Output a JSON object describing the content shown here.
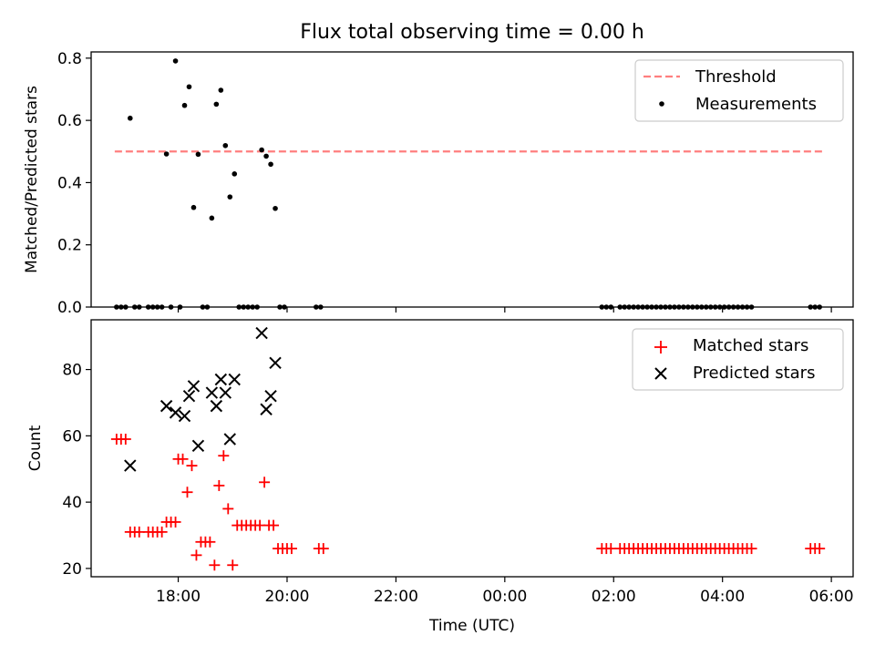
{
  "chart_data": [
    {
      "type": "scatter",
      "title": "Flux total observing time = 0.00 h",
      "ylabel": "Matched/Predicted stars",
      "xlabel": "",
      "xlim": [
        "16:24",
        "06:24"
      ],
      "ylim": [
        0,
        0.82
      ],
      "yticks": [
        "0.0",
        "0.2",
        "0.4",
        "0.6",
        "0.8"
      ],
      "legend_position": "top-right",
      "legend": [
        "Threshold",
        "Measurements"
      ],
      "threshold": {
        "y": 0.5,
        "x_start": "16:50",
        "x_end": "05:50",
        "color": "#ff7f7f"
      },
      "series": [
        {
          "name": "Measurements",
          "marker": "dot",
          "color": "#000000",
          "points": [
            [
              "16:52",
              0
            ],
            [
              "16:57",
              0
            ],
            [
              "17:02",
              0
            ],
            [
              "17:07",
              0.607
            ],
            [
              "17:12",
              0
            ],
            [
              "17:17",
              0
            ],
            [
              "17:27",
              0
            ],
            [
              "17:32",
              0
            ],
            [
              "17:37",
              0
            ],
            [
              "17:42",
              0
            ],
            [
              "17:47",
              0.492
            ],
            [
              "17:52",
              0
            ],
            [
              "17:57",
              0.791
            ],
            [
              "18:02",
              0
            ],
            [
              "18:07",
              0.648
            ],
            [
              "18:12",
              0.708
            ],
            [
              "18:17",
              0.32
            ],
            [
              "18:22",
              0.491
            ],
            [
              "18:27",
              0
            ],
            [
              "18:32",
              0
            ],
            [
              "18:37",
              0.286
            ],
            [
              "18:42",
              0.652
            ],
            [
              "18:47",
              0.697
            ],
            [
              "18:52",
              0.519
            ],
            [
              "18:57",
              0.354
            ],
            [
              "19:02",
              0.428
            ],
            [
              "19:07",
              0
            ],
            [
              "19:12",
              0
            ],
            [
              "19:17",
              0
            ],
            [
              "19:22",
              0
            ],
            [
              "19:27",
              0
            ],
            [
              "19:32",
              0.505
            ],
            [
              "19:37",
              0.485
            ],
            [
              "19:42",
              0.459
            ],
            [
              "19:47",
              0.317
            ],
            [
              "19:52",
              0
            ],
            [
              "19:57",
              0
            ],
            [
              "20:32",
              0
            ],
            [
              "20:37",
              0
            ],
            [
              "01:47",
              0
            ],
            [
              "01:52",
              0
            ],
            [
              "01:57",
              0
            ],
            [
              "02:07",
              0
            ],
            [
              "02:12",
              0
            ],
            [
              "02:17",
              0
            ],
            [
              "02:22",
              0
            ],
            [
              "02:27",
              0
            ],
            [
              "02:32",
              0
            ],
            [
              "02:37",
              0
            ],
            [
              "02:42",
              0
            ],
            [
              "02:47",
              0
            ],
            [
              "02:52",
              0
            ],
            [
              "02:57",
              0
            ],
            [
              "03:02",
              0
            ],
            [
              "03:07",
              0
            ],
            [
              "03:12",
              0
            ],
            [
              "03:17",
              0
            ],
            [
              "03:22",
              0
            ],
            [
              "03:27",
              0
            ],
            [
              "03:32",
              0
            ],
            [
              "03:37",
              0
            ],
            [
              "03:42",
              0
            ],
            [
              "03:47",
              0
            ],
            [
              "03:52",
              0
            ],
            [
              "03:57",
              0
            ],
            [
              "04:02",
              0
            ],
            [
              "04:07",
              0
            ],
            [
              "04:12",
              0
            ],
            [
              "04:17",
              0
            ],
            [
              "04:22",
              0
            ],
            [
              "04:27",
              0
            ],
            [
              "04:32",
              0
            ],
            [
              "05:37",
              0
            ],
            [
              "05:42",
              0
            ],
            [
              "05:47",
              0
            ]
          ]
        }
      ]
    },
    {
      "type": "scatter",
      "title": "",
      "ylabel": "Count",
      "xlabel": "Time (UTC)",
      "xlim": [
        "16:24",
        "06:24"
      ],
      "ylim": [
        17.5,
        95
      ],
      "yticks": [
        "20",
        "40",
        "60",
        "80"
      ],
      "xticks": [
        "18:00",
        "20:00",
        "22:00",
        "00:00",
        "02:00",
        "04:00",
        "06:00"
      ],
      "legend_position": "top-right",
      "legend": [
        "Matched stars",
        "Predicted stars"
      ],
      "series": [
        {
          "name": "Matched stars",
          "marker": "plus",
          "color": "#ff0000",
          "points": [
            [
              "16:52",
              59
            ],
            [
              "16:57",
              59
            ],
            [
              "17:02",
              59
            ],
            [
              "17:07",
              31
            ],
            [
              "17:12",
              31
            ],
            [
              "17:17",
              31
            ],
            [
              "17:27",
              31
            ],
            [
              "17:32",
              31
            ],
            [
              "17:37",
              31
            ],
            [
              "17:42",
              31
            ],
            [
              "17:47",
              34
            ],
            [
              "17:52",
              34
            ],
            [
              "17:57",
              34
            ],
            [
              "18:00",
              53
            ],
            [
              "18:05",
              53
            ],
            [
              "18:10",
              43
            ],
            [
              "18:15",
              51
            ],
            [
              "18:20",
              24
            ],
            [
              "18:25",
              28
            ],
            [
              "18:30",
              28
            ],
            [
              "18:35",
              28
            ],
            [
              "18:40",
              21
            ],
            [
              "18:45",
              45
            ],
            [
              "18:50",
              54
            ],
            [
              "18:55",
              38
            ],
            [
              "19:00",
              21
            ],
            [
              "19:05",
              33
            ],
            [
              "19:10",
              33
            ],
            [
              "19:15",
              33
            ],
            [
              "19:20",
              33
            ],
            [
              "19:25",
              33
            ],
            [
              "19:30",
              33
            ],
            [
              "19:35",
              46
            ],
            [
              "19:40",
              33
            ],
            [
              "19:45",
              33
            ],
            [
              "19:50",
              26
            ],
            [
              "19:55",
              26
            ],
            [
              "20:00",
              26
            ],
            [
              "20:05",
              26
            ],
            [
              "20:35",
              26
            ],
            [
              "20:40",
              26
            ],
            [
              "01:47",
              26
            ],
            [
              "01:52",
              26
            ],
            [
              "01:57",
              26
            ],
            [
              "02:07",
              26
            ],
            [
              "02:12",
              26
            ],
            [
              "02:17",
              26
            ],
            [
              "02:22",
              26
            ],
            [
              "02:27",
              26
            ],
            [
              "02:32",
              26
            ],
            [
              "02:37",
              26
            ],
            [
              "02:42",
              26
            ],
            [
              "02:47",
              26
            ],
            [
              "02:52",
              26
            ],
            [
              "02:57",
              26
            ],
            [
              "03:02",
              26
            ],
            [
              "03:07",
              26
            ],
            [
              "03:12",
              26
            ],
            [
              "03:17",
              26
            ],
            [
              "03:22",
              26
            ],
            [
              "03:27",
              26
            ],
            [
              "03:32",
              26
            ],
            [
              "03:37",
              26
            ],
            [
              "03:42",
              26
            ],
            [
              "03:47",
              26
            ],
            [
              "03:52",
              26
            ],
            [
              "03:57",
              26
            ],
            [
              "04:02",
              26
            ],
            [
              "04:07",
              26
            ],
            [
              "04:12",
              26
            ],
            [
              "04:17",
              26
            ],
            [
              "04:22",
              26
            ],
            [
              "04:27",
              26
            ],
            [
              "04:32",
              26
            ],
            [
              "05:37",
              26
            ],
            [
              "05:42",
              26
            ],
            [
              "05:47",
              26
            ]
          ]
        },
        {
          "name": "Predicted stars",
          "marker": "x",
          "color": "#000000",
          "points": [
            [
              "17:07",
              51
            ],
            [
              "17:47",
              69
            ],
            [
              "17:57",
              67
            ],
            [
              "18:07",
              66
            ],
            [
              "18:12",
              72
            ],
            [
              "18:17",
              75
            ],
            [
              "18:22",
              57
            ],
            [
              "18:37",
              73
            ],
            [
              "18:42",
              69
            ],
            [
              "18:47",
              77
            ],
            [
              "18:52",
              73
            ],
            [
              "18:57",
              59
            ],
            [
              "19:02",
              77
            ],
            [
              "19:32",
              91
            ],
            [
              "19:37",
              68
            ],
            [
              "19:42",
              72
            ],
            [
              "19:47",
              82
            ]
          ]
        }
      ]
    }
  ]
}
